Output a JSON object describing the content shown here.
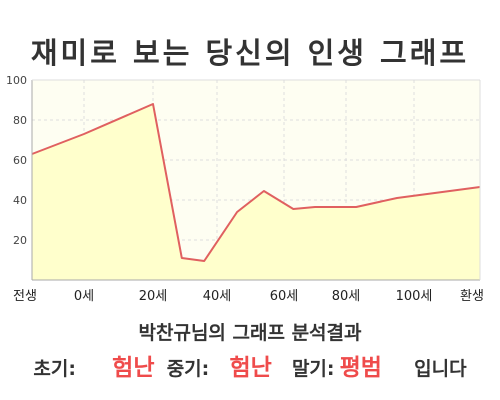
{
  "title": "재미로 보는 당신의 인생 그래프",
  "chart_data": {
    "type": "area",
    "title": "재미로 보는 당신의 인생 그래프",
    "x_categories": [
      "전생",
      "0세",
      "20세",
      "40세",
      "60세",
      "80세",
      "100세",
      "환생"
    ],
    "points": [
      {
        "x": -10,
        "y": 63
      },
      {
        "x": 0,
        "y": 73
      },
      {
        "x": 20,
        "y": 88
      },
      {
        "x": 29,
        "y": 11
      },
      {
        "x": 36,
        "y": 9.5
      },
      {
        "x": 46,
        "y": 34
      },
      {
        "x": 54,
        "y": 44.5
      },
      {
        "x": 63,
        "y": 35.5
      },
      {
        "x": 70,
        "y": 36.5
      },
      {
        "x": 83,
        "y": 36.5
      },
      {
        "x": 95,
        "y": 41
      },
      {
        "x": 104,
        "y": 46.5
      }
    ],
    "y_ticks": [
      20,
      40,
      60,
      80,
      100
    ],
    "ylim": [
      0,
      100
    ],
    "grid": true,
    "colors": {
      "line": "#e06060",
      "fill": "#ffffcc",
      "background": "#fefef2",
      "grid": "#dddddd"
    }
  },
  "analysis": {
    "heading": "박찬규님의 그래프 분석결과",
    "early_label": "초기:",
    "early_value": "험난",
    "middle_label": "중기:",
    "middle_value": "험난",
    "late_label": "말기:",
    "late_value": "평범",
    "suffix": "입니다"
  }
}
